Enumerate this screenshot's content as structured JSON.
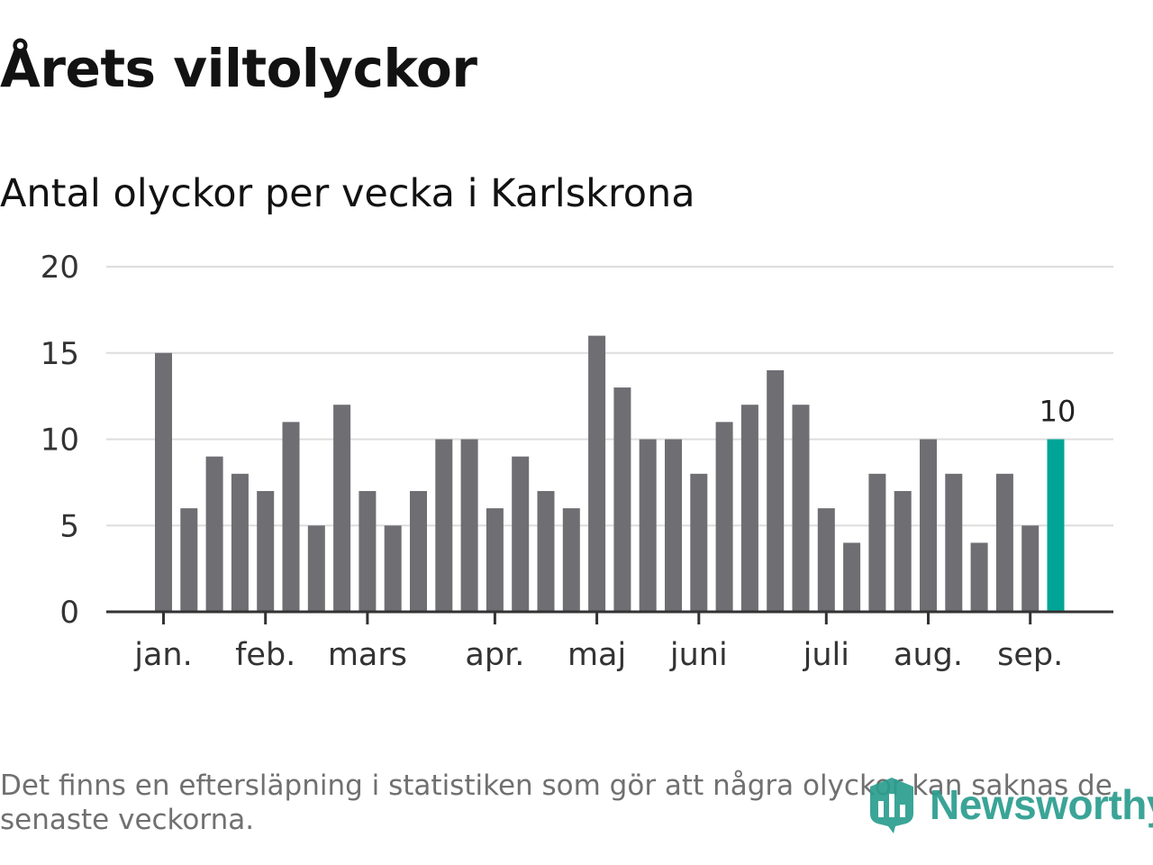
{
  "header": {
    "title": "Årets viltolyckor",
    "subtitle": "Antal olyckor per vecka i Karlskrona"
  },
  "chart_data": {
    "type": "bar",
    "title": "Årets viltolyckor",
    "subtitle": "Antal olyckor per vecka i Karlskrona",
    "xlabel": "",
    "ylabel": "",
    "ylim": [
      0,
      20
    ],
    "yticks": [
      0,
      5,
      10,
      15,
      20
    ],
    "grid": true,
    "month_labels": [
      "jan.",
      "feb.",
      "mars",
      "apr.",
      "maj",
      "juni",
      "juli",
      "aug.",
      "sep."
    ],
    "month_tick_week_index": [
      0,
      4,
      8,
      13,
      17,
      21,
      26,
      30,
      34
    ],
    "values": [
      15,
      6,
      9,
      8,
      7,
      11,
      5,
      12,
      7,
      5,
      7,
      10,
      10,
      6,
      9,
      7,
      6,
      16,
      13,
      10,
      10,
      8,
      11,
      12,
      14,
      12,
      6,
      4,
      8,
      7,
      10,
      8,
      4,
      8,
      5,
      10
    ],
    "highlight_index": 35,
    "highlight_label": "10",
    "colors": {
      "bar": "#6e6e73",
      "highlight": "#00a596",
      "grid": "#dddddd",
      "axis": "#333333"
    }
  },
  "footnote": "Det finns en eftersläpning i statistiken som gör att några olyckor kan saknas de senaste veckorna.",
  "brand": {
    "name": "Newsworthy",
    "icon": "newsworthy-logo-icon",
    "color": "#2a9d8f"
  }
}
